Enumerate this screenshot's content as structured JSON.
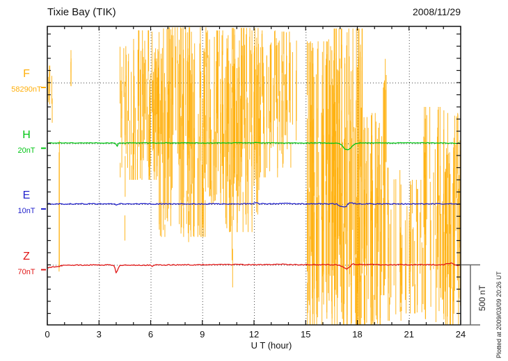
{
  "figure": {
    "title": "Tixie Bay (TIK)",
    "date": "2008/11/29",
    "xlabel": "U T (hour)",
    "scale_bar_label": "500 nT",
    "plotted_at": "Plotted at 2009/03/09 20:26 UT"
  },
  "chart_data": {
    "type": "line",
    "title": "Tixie Bay (TIK)",
    "date": "2008/11/29",
    "xlabel": "U T (hour)",
    "xlim": [
      0,
      24
    ],
    "x_major_ticks": [
      0,
      3,
      6,
      9,
      12,
      15,
      18,
      21,
      24
    ],
    "x_minor_step_hours": 1,
    "x_grid_hours": [
      3,
      6,
      9,
      12,
      15,
      18,
      21
    ],
    "y_division_nT": 100,
    "row_spacing_nT": 500,
    "grid": "dotted",
    "scale_bar": {
      "label": "500 nT",
      "value_nT": 500
    },
    "plotted_at": "Plotted at 2009/03/09 20:26 UT",
    "series": [
      {
        "name": "F",
        "baseline_label": "58290nT",
        "color": "#FFAF0A",
        "row": 0,
        "kind": "noise",
        "noise_envelope": [
          [
            0.05,
            0.4,
            140,
            -430,
            6
          ],
          [
            0.68,
            0.76,
            140,
            -1610,
            2
          ],
          [
            1.3,
            1.45,
            340,
            -40,
            3
          ],
          [
            4.15,
            4.75,
            300,
            -780,
            14
          ],
          [
            4.45,
            4.55,
            -600,
            -1300,
            2
          ],
          [
            4.75,
            6.5,
            430,
            -800,
            60
          ],
          [
            6.5,
            9.3,
            455,
            -1270,
            100
          ],
          [
            8.0,
            8.25,
            -800,
            -1360,
            3
          ],
          [
            9.3,
            10.3,
            430,
            -1000,
            32
          ],
          [
            10.3,
            12.3,
            450,
            -1230,
            75
          ],
          [
            10.6,
            10.8,
            -1100,
            -1730,
            2
          ],
          [
            12.3,
            13.4,
            430,
            -780,
            30
          ],
          [
            13.4,
            14.55,
            420,
            -700,
            24
          ],
          [
            15.05,
            16.3,
            340,
            -2000,
            55
          ],
          [
            16.3,
            18.3,
            445,
            -2010,
            100
          ],
          [
            18.3,
            19.35,
            -250,
            -2000,
            40
          ],
          [
            19.3,
            19.75,
            250,
            -1750,
            10
          ],
          [
            19.75,
            20.65,
            -700,
            -1960,
            18
          ],
          [
            20.65,
            21.85,
            -800,
            -1900,
            22
          ],
          [
            21.85,
            23.05,
            -200,
            -2000,
            32
          ],
          [
            23.05,
            24.0,
            -250,
            -2010,
            38
          ]
        ]
      },
      {
        "name": "H",
        "baseline_label": "20nT",
        "color": "#00C513",
        "row": 1,
        "kind": "line",
        "jitter_nT": 2.5,
        "points": [
          [
            0,
            3
          ],
          [
            0.5,
            3
          ],
          [
            1,
            4
          ],
          [
            1.5,
            3
          ],
          [
            2,
            3
          ],
          [
            2.5,
            4
          ],
          [
            3,
            3
          ],
          [
            3.5,
            3
          ],
          [
            3.95,
            3
          ],
          [
            4.05,
            -26
          ],
          [
            4.15,
            4
          ],
          [
            4.5,
            3
          ],
          [
            5,
            3
          ],
          [
            5.5,
            4
          ],
          [
            6,
            3
          ],
          [
            7,
            4
          ],
          [
            8,
            4
          ],
          [
            9,
            3
          ],
          [
            10,
            3
          ],
          [
            11,
            4
          ],
          [
            12,
            5
          ],
          [
            13,
            4
          ],
          [
            14,
            3
          ],
          [
            15,
            3
          ],
          [
            15.8,
            5
          ],
          [
            16.2,
            2
          ],
          [
            16.9,
            3
          ],
          [
            17.1,
            -15
          ],
          [
            17.3,
            -52
          ],
          [
            17.5,
            -50
          ],
          [
            17.7,
            -25
          ],
          [
            17.9,
            -2
          ],
          [
            18.1,
            3
          ],
          [
            19,
            4
          ],
          [
            20,
            3
          ],
          [
            21,
            5
          ],
          [
            22,
            4
          ],
          [
            23,
            3
          ],
          [
            23.6,
            1
          ],
          [
            24,
            3
          ]
        ]
      },
      {
        "name": "E",
        "baseline_label": "10nT",
        "color": "#2222CC",
        "row": 2,
        "kind": "line",
        "jitter_nT": 4,
        "points": [
          [
            0,
            2
          ],
          [
            1,
            1
          ],
          [
            2,
            2
          ],
          [
            3,
            1
          ],
          [
            3.9,
            1
          ],
          [
            4.0,
            -14
          ],
          [
            4.15,
            2
          ],
          [
            5,
            1
          ],
          [
            6,
            2
          ],
          [
            6.5,
            1
          ],
          [
            8,
            2
          ],
          [
            9,
            1
          ],
          [
            10,
            1
          ],
          [
            11,
            2
          ],
          [
            11.9,
            3
          ],
          [
            12.1,
            12
          ],
          [
            12.3,
            2
          ],
          [
            13,
            2
          ],
          [
            14,
            5
          ],
          [
            14.5,
            3
          ],
          [
            15,
            2
          ],
          [
            16,
            2
          ],
          [
            16.8,
            1
          ],
          [
            17.1,
            -22
          ],
          [
            17.35,
            -18
          ],
          [
            17.55,
            14
          ],
          [
            17.75,
            6
          ],
          [
            18,
            1
          ],
          [
            19,
            2
          ],
          [
            20,
            1
          ],
          [
            21,
            2
          ],
          [
            22,
            1
          ],
          [
            23,
            2
          ],
          [
            24,
            1
          ]
        ]
      },
      {
        "name": "Z",
        "baseline_label": "70nT",
        "color": "#E01515",
        "row": 3,
        "kind": "line",
        "jitter_nT": 4,
        "points": [
          [
            0,
            -22
          ],
          [
            0.3,
            -18
          ],
          [
            0.6,
            -14
          ],
          [
            0.8,
            -8
          ],
          [
            0.9,
            -4
          ],
          [
            1.2,
            -3
          ],
          [
            2,
            -2
          ],
          [
            3,
            -1
          ],
          [
            3.9,
            -2
          ],
          [
            3.98,
            -80
          ],
          [
            4.02,
            -15
          ],
          [
            4.08,
            -72
          ],
          [
            4.15,
            -5
          ],
          [
            4.5,
            -3
          ],
          [
            5,
            -2
          ],
          [
            6,
            -2
          ],
          [
            6.05,
            -18
          ],
          [
            6.15,
            -3
          ],
          [
            7,
            -1
          ],
          [
            8,
            0
          ],
          [
            9,
            1
          ],
          [
            10,
            2
          ],
          [
            11,
            3
          ],
          [
            12,
            1
          ],
          [
            13,
            2
          ],
          [
            13.6,
            4
          ],
          [
            14,
            2
          ],
          [
            15,
            0
          ],
          [
            16,
            2
          ],
          [
            16.8,
            0
          ],
          [
            17.15,
            -12
          ],
          [
            17.35,
            -36
          ],
          [
            17.55,
            -18
          ],
          [
            17.7,
            10
          ],
          [
            17.9,
            4
          ],
          [
            18.5,
            2
          ],
          [
            19,
            2
          ],
          [
            20,
            0
          ],
          [
            21,
            1
          ],
          [
            22,
            0
          ],
          [
            23,
            1
          ],
          [
            23.45,
            16
          ],
          [
            23.6,
            4
          ],
          [
            23.85,
            -6
          ],
          [
            24,
            -3
          ]
        ]
      }
    ]
  }
}
